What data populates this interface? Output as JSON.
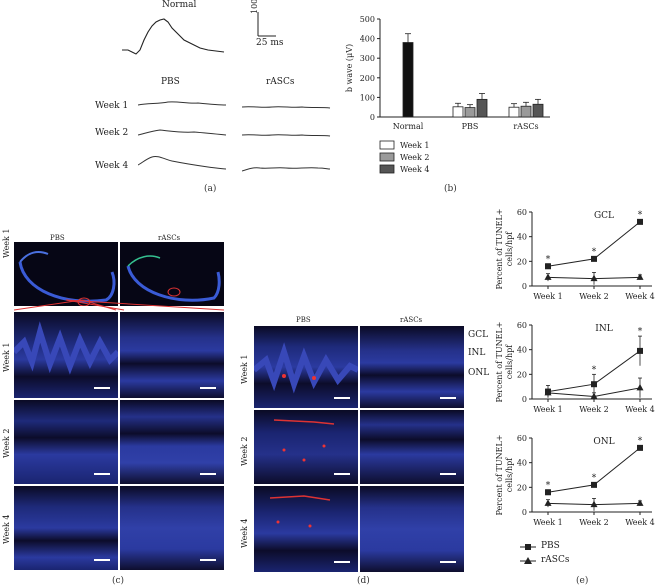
{
  "panel_a": {
    "letter": "(a)",
    "normal_label": "Normal",
    "scale_voltage": "100 μV",
    "scale_time": "25 ms",
    "col_pbs": "PBS",
    "col_rascs": "rASCs",
    "rows": [
      "Week 1",
      "Week 2",
      "Week 4"
    ]
  },
  "panel_b": {
    "letter": "(b)",
    "legend": [
      "Week 1",
      "Week 2",
      "Week 4"
    ],
    "colors": {
      "week1": "#ffffff",
      "week2": "#9a9a9a",
      "week4": "#555555",
      "normal": "#111111"
    }
  },
  "panel_c": {
    "letter": "(c)",
    "col_pbs": "PBS",
    "col_rascs": "rASCs",
    "rows": [
      "Week 1",
      "Week 2",
      "Week 4"
    ]
  },
  "panel_d": {
    "letter": "(d)",
    "col_pbs": "PBS",
    "col_rascs": "rASCs",
    "rows": [
      "Week 1",
      "Week 2",
      "Week 4"
    ],
    "layers": [
      "GCL",
      "INL",
      "ONL"
    ]
  },
  "panel_e": {
    "letter": "(e)",
    "legend": [
      "PBS",
      "rASCs"
    ]
  },
  "chart_data": [
    {
      "type": "bar",
      "title": "",
      "xlabel": "",
      "ylabel": "b wave (μV)",
      "ylim": [
        0,
        500
      ],
      "yticks": [
        0,
        100,
        200,
        300,
        400,
        500
      ],
      "group_labels": [
        "Normal",
        "PBS",
        "rASCs"
      ],
      "series": [
        {
          "name": "Normal",
          "values": [
            380,
            null,
            null
          ],
          "errors": [
            45,
            null,
            null
          ]
        },
        {
          "name": "Week 1",
          "values": [
            null,
            52,
            50
          ],
          "errors": [
            null,
            18,
            18
          ]
        },
        {
          "name": "Week 2",
          "values": [
            null,
            48,
            55
          ],
          "errors": [
            null,
            15,
            20
          ]
        },
        {
          "name": "Week 4",
          "values": [
            null,
            90,
            65
          ],
          "errors": [
            null,
            30,
            25
          ]
        }
      ],
      "legend_position": "bottom-left",
      "grid": false
    },
    {
      "type": "line",
      "title": "GCL",
      "ylabel": "Percent of TUNEL+ cells/hpf",
      "ylim": [
        0,
        60
      ],
      "yticks": [
        0,
        20,
        40,
        60
      ],
      "categories": [
        "Week 1",
        "Week 2",
        "Week 4"
      ],
      "series": [
        {
          "name": "PBS",
          "marker": "square",
          "values": [
            16,
            22,
            52
          ],
          "errors": [
            2,
            2,
            2
          ],
          "significant": [
            true,
            true,
            true
          ]
        },
        {
          "name": "rASCs",
          "marker": "triangle",
          "values": [
            7,
            6,
            7
          ],
          "errors": [
            3,
            5,
            2
          ],
          "significant": [
            false,
            false,
            false
          ]
        }
      ]
    },
    {
      "type": "line",
      "title": "INL",
      "ylabel": "Percent of TUNEL+ cells/hpf",
      "ylim": [
        0,
        60
      ],
      "yticks": [
        0,
        20,
        40,
        60
      ],
      "categories": [
        "Week 1",
        "Week 2",
        "Week 4"
      ],
      "series": [
        {
          "name": "PBS",
          "marker": "square",
          "values": [
            6,
            12,
            39
          ],
          "errors": [
            5,
            8,
            12
          ],
          "significant": [
            false,
            true,
            true
          ]
        },
        {
          "name": "rASCs",
          "marker": "triangle",
          "values": [
            5,
            2,
            9
          ],
          "errors": [
            3,
            3,
            8
          ],
          "significant": [
            false,
            false,
            false
          ]
        }
      ]
    },
    {
      "type": "line",
      "title": "ONL",
      "ylabel": "Percent of TUNEL+ cells/hpf",
      "ylim": [
        0,
        60
      ],
      "yticks": [
        0,
        20,
        40,
        60
      ],
      "categories": [
        "Week 1",
        "Week 2",
        "Week 4"
      ],
      "series": [
        {
          "name": "PBS",
          "marker": "square",
          "values": [
            16,
            22,
            52
          ],
          "errors": [
            2,
            2,
            2
          ],
          "significant": [
            true,
            true,
            true
          ]
        },
        {
          "name": "rASCs",
          "marker": "triangle",
          "values": [
            7,
            6,
            7
          ],
          "errors": [
            3,
            5,
            2
          ],
          "significant": [
            false,
            false,
            false
          ]
        }
      ]
    }
  ]
}
